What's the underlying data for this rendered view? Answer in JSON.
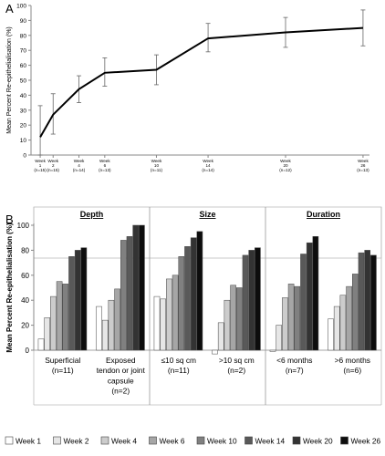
{
  "chart_data": [
    {
      "panel_label": "A",
      "type": "line",
      "title": "",
      "xlabel": "",
      "ylabel": "Mean Percent Re-epithelialisation (%)",
      "ylim": [
        0,
        100
      ],
      "yticks": [
        0,
        10,
        20,
        30,
        40,
        50,
        60,
        70,
        80,
        90,
        100
      ],
      "grid": false,
      "x": [
        1,
        2,
        4,
        6,
        10,
        14,
        20,
        26
      ],
      "x_tick_labels": [
        {
          "line1": "Week",
          "line2": "1",
          "line3": "(n=15)"
        },
        {
          "line1": "Week",
          "line2": "2",
          "line3": "(n=15)"
        },
        {
          "line1": "Week",
          "line2": "4",
          "line3": "(n=14)"
        },
        {
          "line1": "Week",
          "line2": "6",
          "line3": "(n=13)"
        },
        {
          "line1": "Week",
          "line2": "10",
          "line3": "(n=11)"
        },
        {
          "line1": "Week",
          "line2": "14",
          "line3": "(n=14)"
        },
        {
          "line1": "Week",
          "line2": "20",
          "line3": "(n=12)"
        },
        {
          "line1": "Week",
          "line2": "26",
          "line3": "(n=13)"
        }
      ],
      "series": [
        {
          "name": "",
          "values": [
            12,
            27,
            44,
            55,
            57,
            78,
            82,
            85
          ],
          "error_low": [
            0,
            14,
            35,
            46,
            47,
            69,
            72,
            73
          ],
          "error_high": [
            33,
            41,
            53,
            65,
            67,
            88,
            92,
            97
          ],
          "color": "#000000"
        }
      ]
    },
    {
      "panel_label": "B",
      "type": "bar",
      "title": "",
      "xlabel": "",
      "ylabel": "Mean Percent Re-epithelialisation (%)",
      "ylim": [
        0,
        100
      ],
      "yticks": [
        0,
        20,
        40,
        60,
        80,
        100
      ],
      "grid": false,
      "legend_position": "bottom",
      "group_headers": [
        {
          "label": "Depth",
          "categories": [
            0,
            1
          ]
        },
        {
          "label": "Size",
          "categories": [
            2,
            3
          ]
        },
        {
          "label": "Duration",
          "categories": [
            4,
            5
          ]
        }
      ],
      "categories": [
        {
          "lines": [
            "Superficial",
            "(n=11)"
          ]
        },
        {
          "lines": [
            "Exposed",
            "tendon or joint",
            "capsule",
            "(n=2)"
          ]
        },
        {
          "lines": [
            "≤10 sq cm",
            "(n=11)"
          ]
        },
        {
          "lines": [
            ">10 sq cm",
            "(n=2)"
          ]
        },
        {
          "lines": [
            "<6 months",
            "(n=7)"
          ]
        },
        {
          "lines": [
            ">6 months",
            "(n=6)"
          ]
        }
      ],
      "series": [
        {
          "name": "Week 1",
          "color": "#ffffff",
          "values": [
            9,
            35,
            43,
            -3,
            -1,
            25
          ]
        },
        {
          "name": "Week 2",
          "color": "#e6e6e6",
          "values": [
            26,
            24,
            41,
            22,
            20,
            35
          ]
        },
        {
          "name": "Week 4",
          "color": "#cccccc",
          "values": [
            43,
            40,
            57,
            40,
            42,
            44
          ]
        },
        {
          "name": "Week 6",
          "color": "#a6a6a6",
          "values": [
            55,
            49,
            60,
            52,
            53,
            51
          ]
        },
        {
          "name": "Week 10",
          "color": "#808080",
          "values": [
            53,
            88,
            75,
            50,
            51,
            61
          ]
        },
        {
          "name": "Week 14",
          "color": "#595959",
          "values": [
            75,
            91,
            83,
            76,
            77,
            78
          ]
        },
        {
          "name": "Week 20",
          "color": "#333333",
          "values": [
            80,
            100,
            90,
            80,
            86,
            80
          ]
        },
        {
          "name": "Week 26",
          "color": "#0d0d0d",
          "values": [
            82,
            100,
            95,
            82,
            91,
            76
          ]
        }
      ]
    }
  ]
}
